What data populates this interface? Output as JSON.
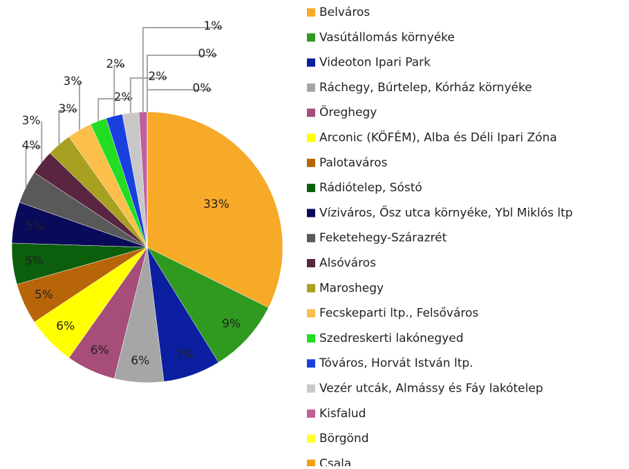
{
  "chart_data": {
    "type": "pie",
    "categories": [
      "Belváros",
      "Vasútállomás környéke",
      "Videoton Ipari Park",
      "Ráchegy, Búrtelep, Kórház környéke",
      "Öreghegy",
      "Arconic (KÖFÉM), Alba és Déli Ipari Zóna",
      "Palotaváros",
      "Rádiótelep, Sóstó",
      "Víziváros, Ősz utca környéke, Ybl Miklós ltp",
      "Feketehegy-Szárazrét",
      "Alsóváros",
      "Maroshegy",
      "Fecskeparti ltp., Felsőváros",
      "Szedreskerti lakónegyed",
      "Tóváros, Horvát István ltp.",
      "Vezér utcák, Almássy és Fáy lakótelep",
      "Kisfalud",
      "Börgönd",
      "Csala"
    ],
    "values": [
      33,
      9,
      7,
      6,
      6,
      6,
      5,
      5,
      5,
      4,
      3,
      3,
      3,
      2,
      2,
      2,
      1,
      0,
      0
    ],
    "value_labels": [
      "33%",
      "9%",
      "7%",
      "6%",
      "6%",
      "6%",
      "5%",
      "5%",
      "5%",
      "4%",
      "3%",
      "3%",
      "3%",
      "2%",
      "2%",
      "2%",
      "1%",
      "0%",
      "0%"
    ],
    "colors": [
      "#f7a928",
      "#2f9a1f",
      "#0b1fa0",
      "#a6a6a6",
      "#a64d79",
      "#ffff00",
      "#b8650a",
      "#0b5e0b",
      "#0a0a5a",
      "#595959",
      "#5a2540",
      "#a8a020",
      "#fbbf4a",
      "#22dd22",
      "#1a3fe0",
      "#c8c8c8",
      "#c0609a",
      "#ffff33",
      "#f0a010"
    ],
    "legend": "right"
  }
}
